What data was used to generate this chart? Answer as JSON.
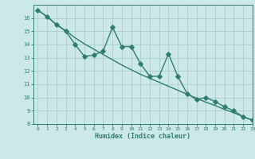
{
  "xlabel": "Humidex (Indice chaleur)",
  "bg_color": "#cce8e8",
  "grid_color": "#aacccc",
  "line_color": "#2e7d6e",
  "x_jagged": [
    0,
    1,
    2,
    3,
    4,
    5,
    6,
    7,
    8,
    9,
    10,
    11,
    12,
    13,
    14,
    15,
    16,
    17,
    18,
    19,
    20,
    21,
    22,
    23
  ],
  "y_jagged": [
    16.6,
    16.1,
    15.5,
    15.0,
    14.0,
    13.1,
    13.2,
    13.5,
    15.3,
    13.85,
    13.85,
    12.55,
    11.6,
    11.6,
    13.3,
    11.6,
    10.3,
    9.85,
    10.0,
    9.7,
    9.3,
    9.0,
    8.55,
    8.3
  ],
  "x_smooth": [
    0,
    1,
    2,
    3,
    4,
    5,
    6,
    7,
    8,
    9,
    10,
    11,
    12,
    13,
    14,
    15,
    16,
    17,
    18,
    19,
    20,
    21,
    22,
    23
  ],
  "y_smooth": [
    16.6,
    16.1,
    15.5,
    15.05,
    14.5,
    14.05,
    13.65,
    13.25,
    12.85,
    12.45,
    12.1,
    11.75,
    11.45,
    11.15,
    10.85,
    10.55,
    10.25,
    9.95,
    9.65,
    9.4,
    9.1,
    8.85,
    8.55,
    8.3
  ],
  "ylim": [
    8,
    17
  ],
  "xlim": [
    -0.5,
    23
  ],
  "yticks": [
    8,
    9,
    10,
    11,
    12,
    13,
    14,
    15,
    16
  ],
  "xticks": [
    0,
    1,
    2,
    3,
    4,
    5,
    6,
    7,
    8,
    9,
    10,
    11,
    12,
    13,
    14,
    15,
    16,
    17,
    18,
    19,
    20,
    21,
    22,
    23
  ],
  "markersize": 2.8,
  "linewidth": 1.0
}
